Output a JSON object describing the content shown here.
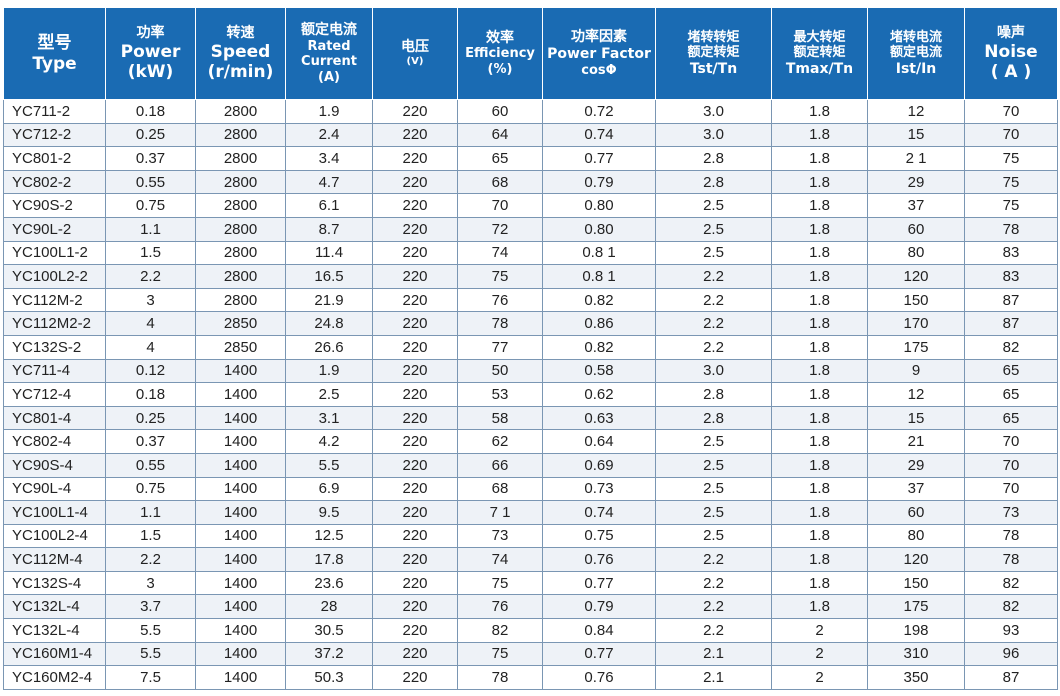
{
  "table": {
    "headers": [
      [
        "型号",
        "Type"
      ],
      [
        "功率",
        "Power",
        "(kW)"
      ],
      [
        "转速",
        "Speed",
        "(r/min)"
      ],
      [
        "额定电流",
        "Rated",
        "Current",
        "(A)"
      ],
      [
        "电压",
        "(V)"
      ],
      [
        "效率",
        "Efficiency",
        "(%)"
      ],
      [
        "功率因素",
        "Power Factor",
        "cosΦ"
      ],
      [
        "堵转转矩",
        "额定转矩",
        "Tst/Tn"
      ],
      [
        "最大转矩",
        "额定转矩",
        "Tmax/Tn"
      ],
      [
        "堵转电流",
        "额定电流",
        "Ist/In"
      ],
      [
        "噪声",
        "Noise",
        "( A )"
      ]
    ],
    "rows": [
      [
        "YC711-2",
        "0.18",
        "2800",
        "1.9",
        "220",
        "60",
        "0.72",
        "3.0",
        "1.8",
        "12",
        "70"
      ],
      [
        "YC712-2",
        "0.25",
        "2800",
        "2.4",
        "220",
        "64",
        "0.74",
        "3.0",
        "1.8",
        "15",
        "70"
      ],
      [
        "YC801-2",
        "0.37",
        "2800",
        "3.4",
        "220",
        "65",
        "0.77",
        "2.8",
        "1.8",
        "2 1",
        "75"
      ],
      [
        "YC802-2",
        "0.55",
        "2800",
        "4.7",
        "220",
        "68",
        "0.79",
        "2.8",
        "1.8",
        "29",
        "75"
      ],
      [
        "YC90S-2",
        "0.75",
        "2800",
        "6.1",
        "220",
        "70",
        "0.80",
        "2.5",
        "1.8",
        "37",
        "75"
      ],
      [
        "YC90L-2",
        "1.1",
        "2800",
        "8.7",
        "220",
        "72",
        "0.80",
        "2.5",
        "1.8",
        "60",
        "78"
      ],
      [
        "YC100L1-2",
        "1.5",
        "2800",
        "11.4",
        "220",
        "74",
        "0.8 1",
        "2.5",
        "1.8",
        "80",
        "83"
      ],
      [
        "YC100L2-2",
        "2.2",
        "2800",
        "16.5",
        "220",
        "75",
        "0.8 1",
        "2.2",
        "1.8",
        "120",
        "83"
      ],
      [
        "YC112M-2",
        "3",
        "2800",
        "21.9",
        "220",
        "76",
        "0.82",
        "2.2",
        "1.8",
        "150",
        "87"
      ],
      [
        "YC112M2-2",
        "4",
        "2850",
        "24.8",
        "220",
        "78",
        "0.86",
        "2.2",
        "1.8",
        "170",
        "87"
      ],
      [
        "YC132S-2",
        "4",
        "2850",
        "26.6",
        "220",
        "77",
        "0.82",
        "2.2",
        "1.8",
        "175",
        "82"
      ],
      [
        "YC711-4",
        "0.12",
        "1400",
        "1.9",
        "220",
        "50",
        "0.58",
        "3.0",
        "1.8",
        "9",
        "65"
      ],
      [
        "YC712-4",
        "0.18",
        "1400",
        "2.5",
        "220",
        "53",
        "0.62",
        "2.8",
        "1.8",
        "12",
        "65"
      ],
      [
        "YC801-4",
        "0.25",
        "1400",
        "3.1",
        "220",
        "58",
        "0.63",
        "2.8",
        "1.8",
        "15",
        "65"
      ],
      [
        "YC802-4",
        "0.37",
        "1400",
        "4.2",
        "220",
        "62",
        "0.64",
        "2.5",
        "1.8",
        "21",
        "70"
      ],
      [
        "YC90S-4",
        "0.55",
        "1400",
        "5.5",
        "220",
        "66",
        "0.69",
        "2.5",
        "1.8",
        "29",
        "70"
      ],
      [
        "YC90L-4",
        "0.75",
        "1400",
        "6.9",
        "220",
        "68",
        "0.73",
        "2.5",
        "1.8",
        "37",
        "70"
      ],
      [
        "YC100L1-4",
        "1.1",
        "1400",
        "9.5",
        "220",
        "7 1",
        "0.74",
        "2.5",
        "1.8",
        "60",
        "73"
      ],
      [
        "YC100L2-4",
        "1.5",
        "1400",
        "12.5",
        "220",
        "73",
        "0.75",
        "2.5",
        "1.8",
        "80",
        "78"
      ],
      [
        "YC112M-4",
        "2.2",
        "1400",
        "17.8",
        "220",
        "74",
        "0.76",
        "2.2",
        "1.8",
        "120",
        "78"
      ],
      [
        "YC132S-4",
        "3",
        "1400",
        "23.6",
        "220",
        "75",
        "0.77",
        "2.2",
        "1.8",
        "150",
        "82"
      ],
      [
        "YC132L-4",
        "3.7",
        "1400",
        "28",
        "220",
        "76",
        "0.79",
        "2.2",
        "1.8",
        "175",
        "82"
      ],
      [
        "YC132L-4",
        "5.5",
        "1400",
        "30.5",
        "220",
        "82",
        "0.84",
        "2.2",
        "2",
        "198",
        "93"
      ],
      [
        "YC160M1-4",
        "5.5",
        "1400",
        "37.2",
        "220",
        "75",
        "0.77",
        "2.1",
        "2",
        "310",
        "96"
      ],
      [
        "YC160M2-4",
        "7.5",
        "1400",
        "50.3",
        "220",
        "78",
        "0.76",
        "2.1",
        "2",
        "350",
        "87"
      ]
    ]
  }
}
